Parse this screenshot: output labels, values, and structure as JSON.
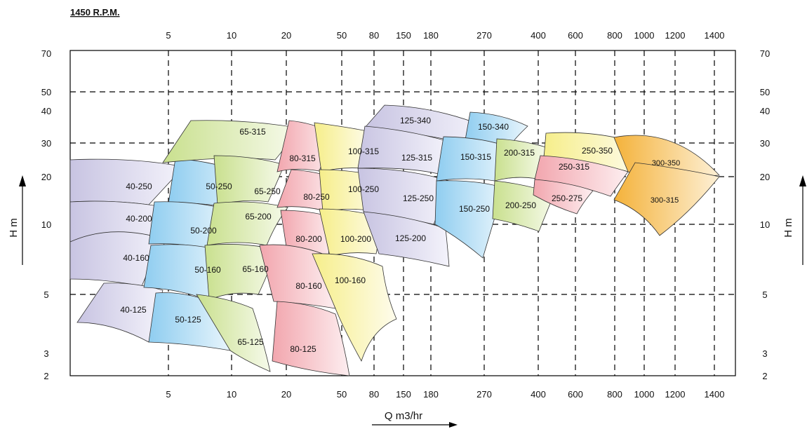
{
  "chart_data": {
    "type": "area",
    "title": "1450 R.P.M.",
    "xlabel": "Q m3/hr",
    "ylabel": "H m",
    "x_ticks": [
      "5",
      "10",
      "20",
      "50",
      "80",
      "150",
      "180",
      "270",
      "400",
      "600",
      "800",
      "1000",
      "1200",
      "1400"
    ],
    "y_ticks_left": [
      "70",
      "50",
      "40",
      "30",
      "20",
      "10",
      "5",
      "3",
      "2"
    ],
    "y_ticks_right": [
      "70",
      "50",
      "40",
      "30",
      "20",
      "10",
      "5",
      "3",
      "2"
    ],
    "grid": "dashed",
    "series": [
      {
        "name": "40-250",
        "color": "#cfcbe6"
      },
      {
        "name": "40-200",
        "color": "#cfcbe6"
      },
      {
        "name": "40-160",
        "color": "#cfcbe6"
      },
      {
        "name": "40-125",
        "color": "#cfcbe6"
      },
      {
        "name": "50-250",
        "color": "#a9d6f2"
      },
      {
        "name": "50-200",
        "color": "#a9d6f2"
      },
      {
        "name": "50-160",
        "color": "#a9d6f2"
      },
      {
        "name": "50-125",
        "color": "#a9d6f2"
      },
      {
        "name": "65-315",
        "color": "#d7e8a8"
      },
      {
        "name": "65-250",
        "color": "#d7e8a8"
      },
      {
        "name": "65-200",
        "color": "#d7e8a8"
      },
      {
        "name": "65-160",
        "color": "#d7e8a8"
      },
      {
        "name": "65-125",
        "color": "#d7e8a8"
      },
      {
        "name": "80-315",
        "color": "#f5b9bf"
      },
      {
        "name": "80-250",
        "color": "#f5b9bf"
      },
      {
        "name": "80-200",
        "color": "#f5b9bf"
      },
      {
        "name": "80-160",
        "color": "#f5b9bf"
      },
      {
        "name": "80-125",
        "color": "#f5b9bf"
      },
      {
        "name": "100-315",
        "color": "#f8f2a5"
      },
      {
        "name": "100-250",
        "color": "#f8f2a5"
      },
      {
        "name": "100-200",
        "color": "#f8f2a5"
      },
      {
        "name": "100-160",
        "color": "#f8f2a5"
      },
      {
        "name": "125-340",
        "color": "#d3cde8"
      },
      {
        "name": "125-315",
        "color": "#d3cde8"
      },
      {
        "name": "125-250",
        "color": "#d3cde8"
      },
      {
        "name": "125-200",
        "color": "#d3cde8"
      },
      {
        "name": "150-340",
        "color": "#a9d6f2"
      },
      {
        "name": "150-315",
        "color": "#a9d6f2"
      },
      {
        "name": "150-250",
        "color": "#a9d6f2"
      },
      {
        "name": "200-315",
        "color": "#d7e8a8"
      },
      {
        "name": "200-250",
        "color": "#d7e8a8"
      },
      {
        "name": "250-350",
        "color": "#f8f2a5"
      },
      {
        "name": "250-315",
        "color": "#f5b9bf"
      },
      {
        "name": "250-275",
        "color": "#f5b9bf"
      },
      {
        "name": "300-350",
        "color": "#f7c76a"
      },
      {
        "name": "300-315",
        "color": "#f7c76a"
      }
    ]
  }
}
